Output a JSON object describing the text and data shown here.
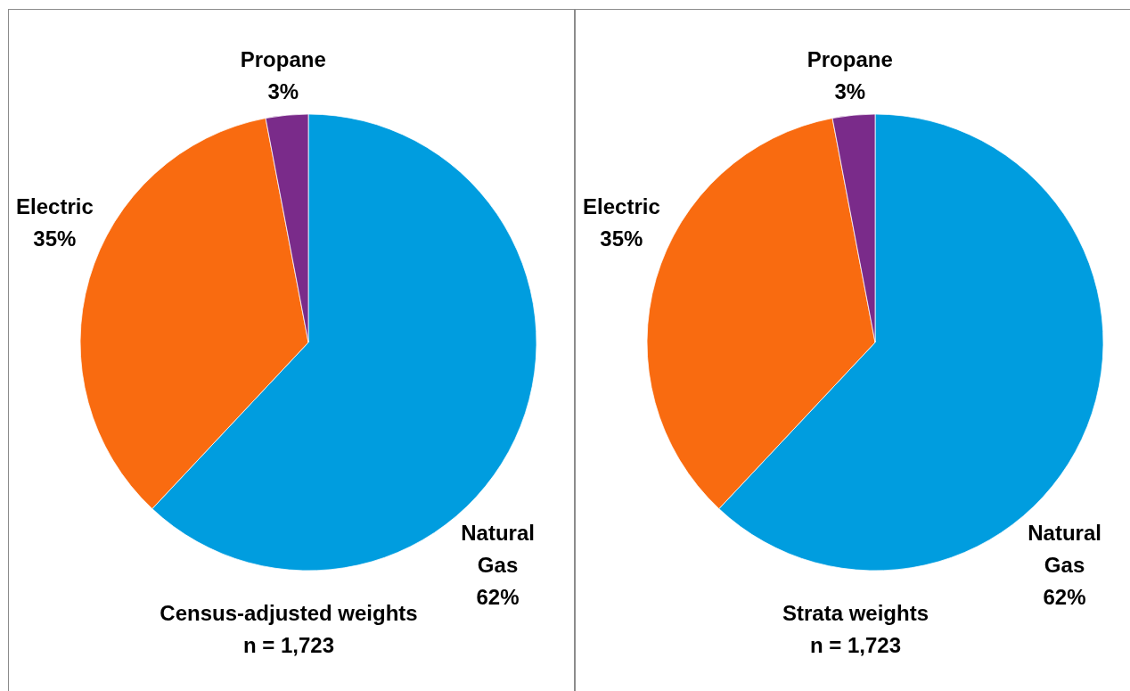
{
  "chart_data": [
    {
      "type": "pie",
      "categories": [
        "Natural Gas",
        "Electric",
        "Propane"
      ],
      "values": [
        62,
        35,
        3
      ],
      "colors": [
        "#009ddf",
        "#f96b10",
        "#7a2b8a"
      ],
      "value_labels": [
        "62%",
        "35%",
        "3%"
      ],
      "annotations": [
        "Census-adjusted weights",
        "n = 1,723"
      ]
    },
    {
      "type": "pie",
      "categories": [
        "Natural Gas",
        "Electric",
        "Propane"
      ],
      "values": [
        62,
        35,
        3
      ],
      "colors": [
        "#009ddf",
        "#f96b10",
        "#7a2b8a"
      ],
      "value_labels": [
        "62%",
        "35%",
        "3%"
      ],
      "annotations": [
        "Strata weights",
        "n = 1,723"
      ]
    }
  ]
}
